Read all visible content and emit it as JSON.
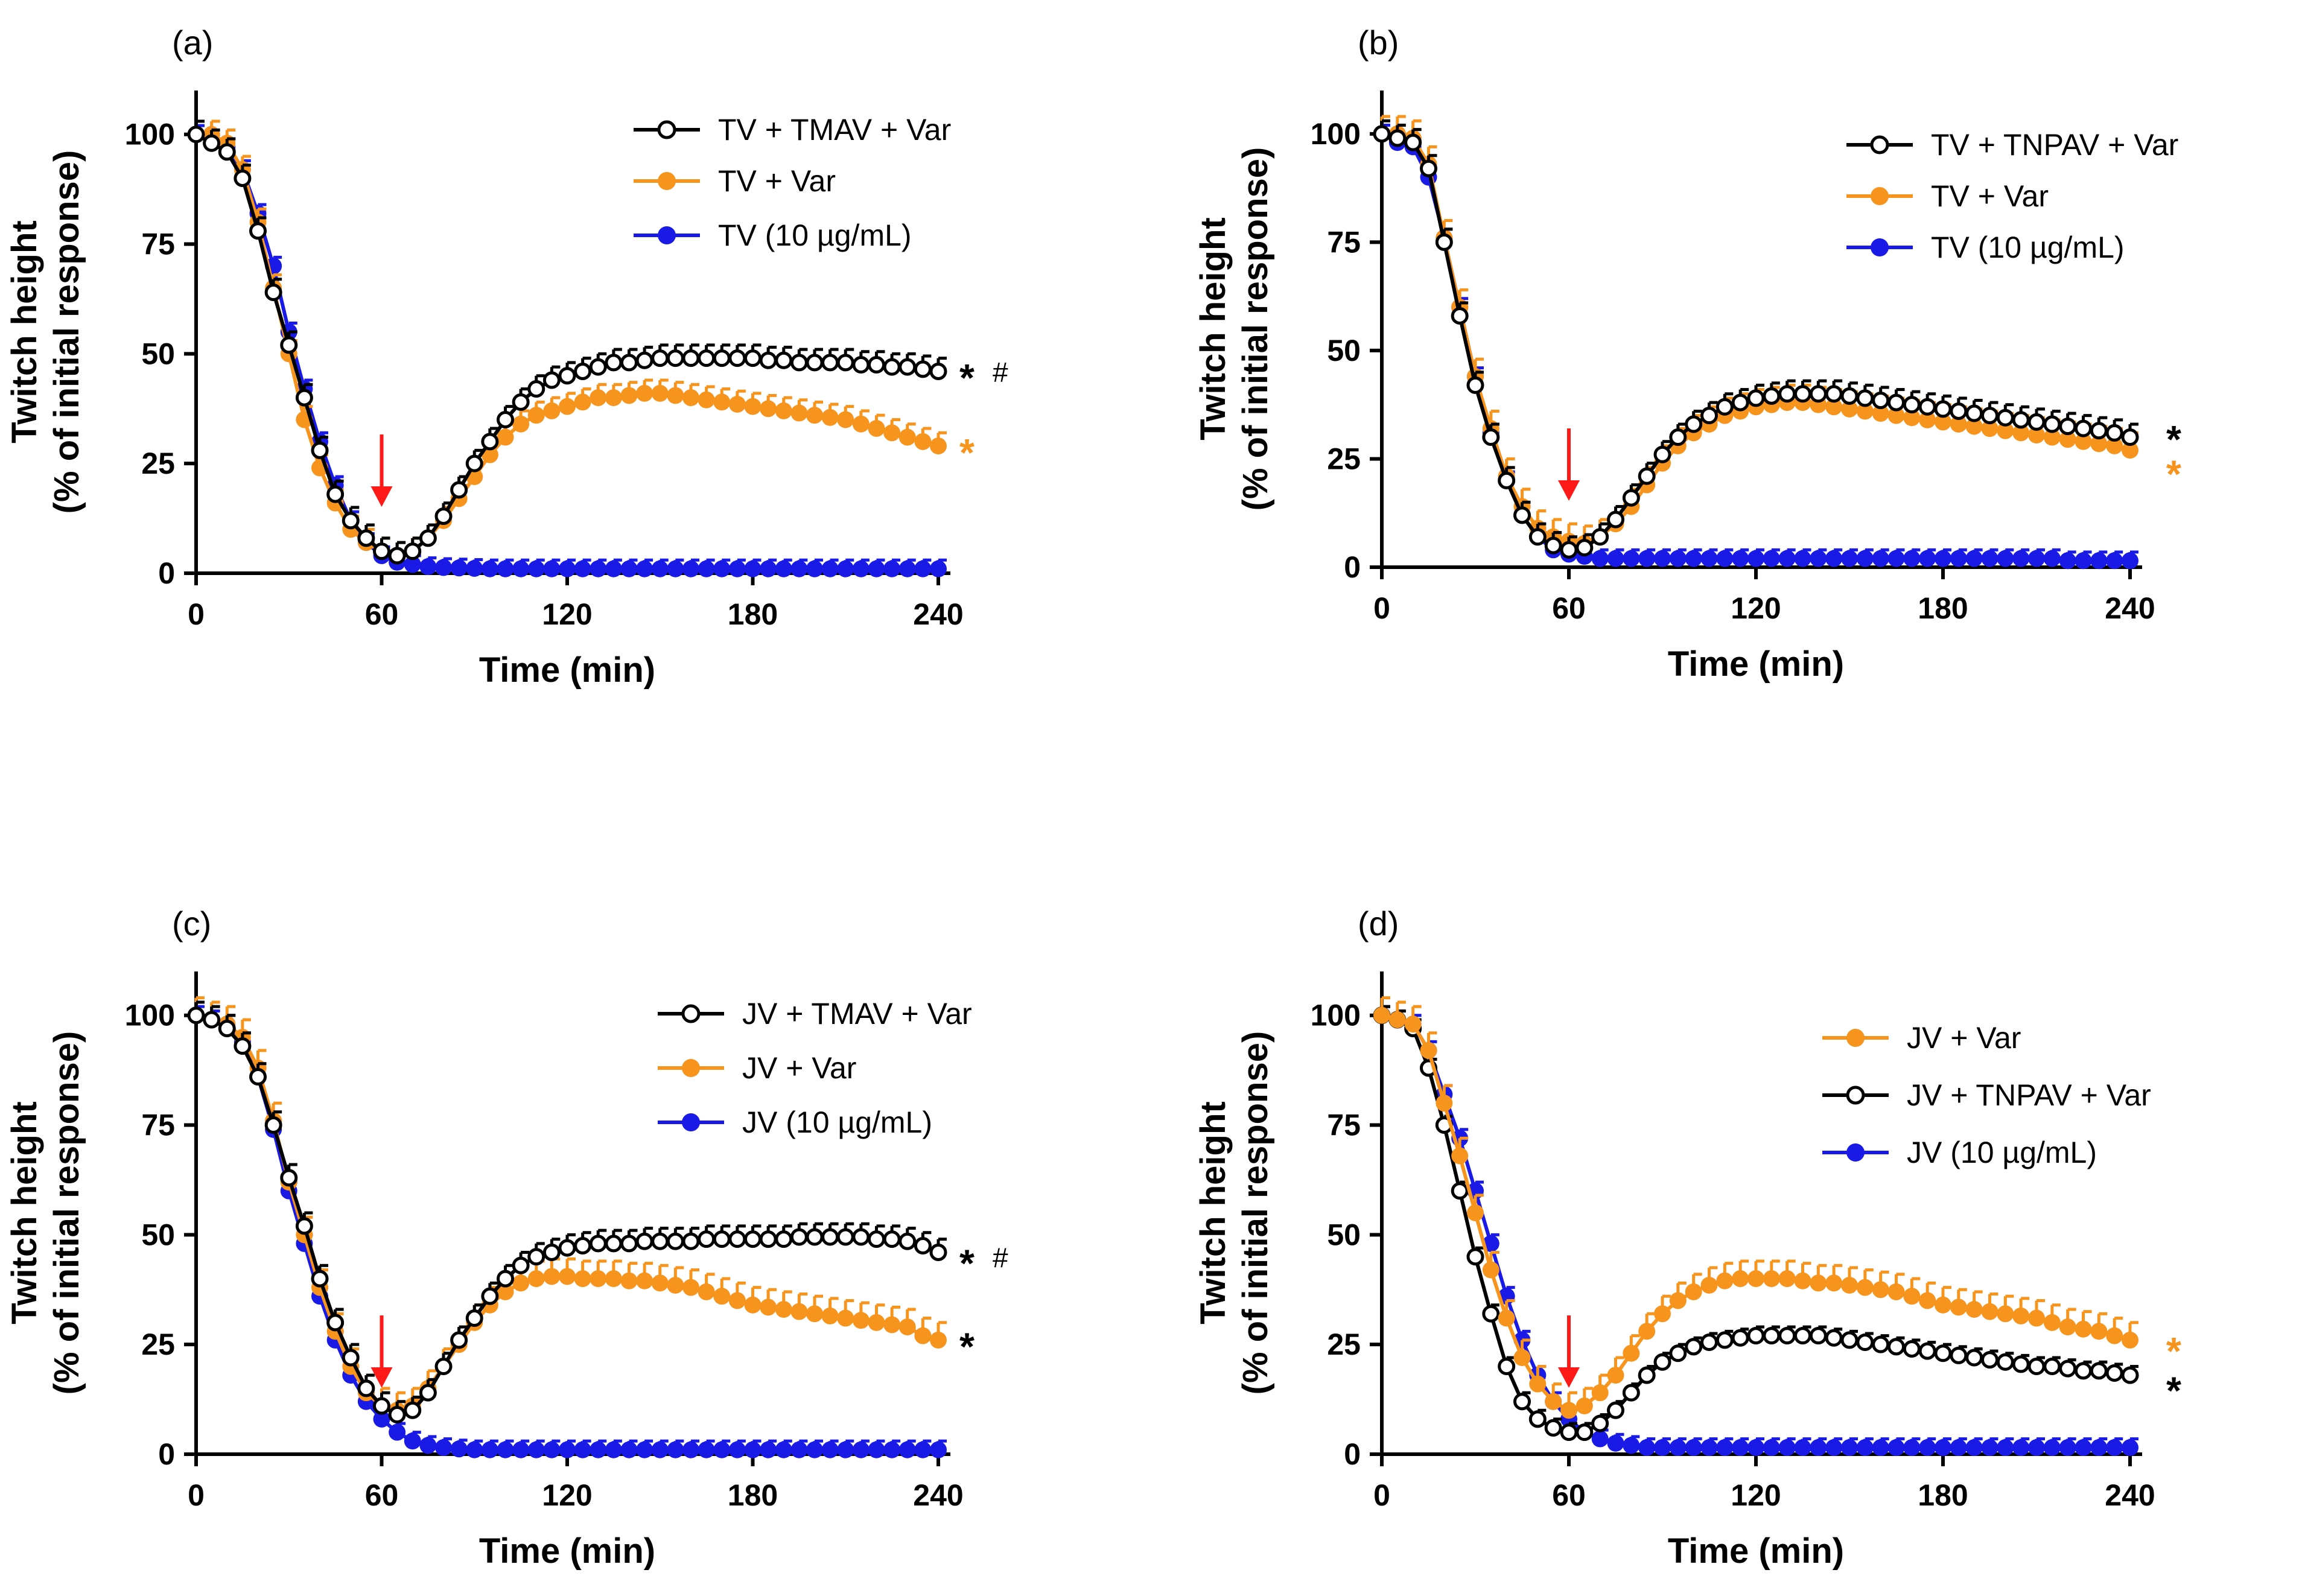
{
  "chart_data": [
    {
      "type": "line",
      "panel": "(a)",
      "xlabel": "Time (min)",
      "ylabel": [
        "Twitch height",
        "(% of initial response)"
      ],
      "xlim": [
        0,
        240
      ],
      "ylim": [
        0,
        110
      ],
      "xticks": [
        0,
        60,
        120,
        180,
        240
      ],
      "yticks": [
        0,
        25,
        50,
        75,
        100
      ],
      "arrow_time": 60,
      "legend": [
        "TV + TMAV + Var",
        "TV + Var",
        "TV (10 µg/mL)"
      ],
      "x": [
        0,
        5,
        10,
        15,
        20,
        25,
        30,
        35,
        40,
        45,
        50,
        55,
        60,
        65,
        70,
        75,
        80,
        85,
        90,
        95,
        100,
        105,
        110,
        115,
        120,
        125,
        130,
        135,
        140,
        145,
        150,
        155,
        160,
        165,
        170,
        175,
        180,
        185,
        190,
        195,
        200,
        205,
        210,
        215,
        220,
        225,
        230,
        235,
        240
      ],
      "series": [
        {
          "name": "TV + TMAV + Var",
          "style": "open",
          "color": "#000000",
          "err": 3,
          "values": [
            100,
            98,
            96,
            90,
            78,
            64,
            52,
            40,
            28,
            18,
            12,
            8,
            5,
            4,
            5,
            8,
            13,
            19,
            25,
            30,
            35,
            39,
            42,
            44,
            45,
            46,
            47,
            48,
            48,
            48.5,
            49,
            49,
            49,
            49,
            49,
            49,
            49,
            48.5,
            48.5,
            48,
            48,
            48,
            48,
            47.5,
            47.5,
            47,
            47,
            46.5,
            46
          ]
        },
        {
          "name": "TV + Var",
          "style": "filled",
          "color": "#F7941D",
          "err": 3,
          "values": [
            100,
            100,
            98,
            92,
            80,
            65,
            50,
            35,
            24,
            16,
            10,
            7,
            5,
            4,
            5,
            8,
            12,
            17,
            22,
            27,
            31,
            34,
            36,
            37,
            38,
            39,
            40,
            40,
            40.5,
            41,
            41,
            40.5,
            40,
            39.5,
            39,
            38.5,
            38,
            37.5,
            37,
            36.5,
            36,
            35.5,
            35,
            34,
            33,
            32,
            31,
            30,
            29
          ]
        },
        {
          "name": "TV (10 µg/mL)",
          "style": "filled",
          "color": "#1A1AE6",
          "err": 2,
          "values": [
            100,
            98,
            97,
            92,
            82,
            70,
            55,
            42,
            30,
            20,
            12,
            7,
            4,
            2.5,
            2,
            1.5,
            1.3,
            1.2,
            1.1,
            1,
            1,
            1,
            1,
            1,
            1,
            1,
            1,
            1,
            1,
            1,
            1,
            1,
            1,
            1,
            1,
            1,
            1,
            1,
            1,
            1,
            1,
            1,
            1,
            1,
            1,
            1,
            1,
            1,
            1
          ]
        }
      ],
      "sig": [
        {
          "text": "*",
          "y": 47,
          "color": "#000000"
        },
        {
          "text": "#",
          "y": 47,
          "color": "#000000",
          "hash": true
        },
        {
          "text": "*",
          "y": 30,
          "color": "#F7941D"
        }
      ]
    },
    {
      "type": "line",
      "panel": "(b)",
      "xlabel": "Time (min)",
      "ylabel": [
        "Twitch height",
        "(% of initial response)"
      ],
      "xlim": [
        0,
        240
      ],
      "ylim": [
        0,
        110
      ],
      "xticks": [
        0,
        60,
        120,
        180,
        240
      ],
      "yticks": [
        0,
        25,
        50,
        75,
        100
      ],
      "arrow_time": 60,
      "legend": [
        "TV + TNPAV + Var",
        "TV + Var",
        "TV (10 µg/mL)"
      ],
      "x": [
        0,
        5,
        10,
        15,
        20,
        25,
        30,
        35,
        40,
        45,
        50,
        55,
        60,
        65,
        70,
        75,
        80,
        85,
        90,
        95,
        100,
        105,
        110,
        115,
        120,
        125,
        130,
        135,
        140,
        145,
        150,
        155,
        160,
        165,
        170,
        175,
        180,
        185,
        190,
        195,
        200,
        205,
        210,
        215,
        220,
        225,
        230,
        235,
        240
      ],
      "series": [
        {
          "name": "TV + TNPAV + Var",
          "style": "open",
          "color": "#000000",
          "err": 3,
          "values": [
            100,
            99,
            98,
            92,
            75,
            58,
            42,
            30,
            20,
            12,
            7,
            5,
            4,
            4.5,
            7,
            11,
            16,
            21,
            26,
            30,
            33,
            35,
            37,
            38,
            39,
            39.5,
            40,
            40,
            40,
            40,
            39.5,
            39,
            38.5,
            38,
            37.5,
            37,
            36.5,
            36,
            35.5,
            35,
            34.5,
            34,
            33.5,
            33,
            32.5,
            32,
            31.5,
            31,
            30
          ]
        },
        {
          "name": "TV + Var",
          "style": "filled",
          "color": "#F7941D",
          "err": 4,
          "values": [
            100,
            100,
            99,
            93,
            76,
            60,
            44,
            32,
            21,
            14,
            9,
            7,
            6,
            5.5,
            7,
            10,
            14,
            19,
            24,
            28,
            31,
            33,
            35,
            36,
            37,
            37.5,
            38,
            38,
            37.5,
            37,
            36.5,
            36,
            35.5,
            35,
            34.5,
            34,
            33.5,
            33,
            32.5,
            32,
            31.5,
            31,
            30.5,
            30,
            29.5,
            29,
            28.5,
            28,
            27
          ]
        },
        {
          "name": "TV (10 µg/mL)",
          "style": "filled",
          "color": "#1A1AE6",
          "err": 2,
          "values": [
            100,
            98,
            97,
            90,
            76,
            60,
            44,
            31,
            20,
            12,
            7,
            4,
            3,
            2.5,
            2,
            2,
            2,
            2,
            2,
            2,
            2,
            2,
            2,
            2,
            2,
            2,
            2,
            2,
            2,
            2,
            2,
            2,
            2,
            2,
            2,
            2,
            2,
            2,
            2,
            2,
            2,
            2,
            2,
            2,
            1.5,
            1.5,
            1.5,
            1.5,
            1.5
          ]
        }
      ],
      "sig": [
        {
          "text": "*",
          "y": 32,
          "color": "#000000"
        },
        {
          "text": "*",
          "y": 24,
          "color": "#F7941D"
        }
      ]
    },
    {
      "type": "line",
      "panel": "(c)",
      "xlabel": "Time (min)",
      "ylabel": [
        "Twitch height",
        "(% of initial response)"
      ],
      "xlim": [
        0,
        240
      ],
      "ylim": [
        0,
        110
      ],
      "xticks": [
        0,
        60,
        120,
        180,
        240
      ],
      "yticks": [
        0,
        25,
        50,
        75,
        100
      ],
      "arrow_time": 60,
      "legend": [
        "JV + TMAV + Var",
        "JV + Var",
        "JV (10 µg/mL)"
      ],
      "x": [
        0,
        5,
        10,
        15,
        20,
        25,
        30,
        35,
        40,
        45,
        50,
        55,
        60,
        65,
        70,
        75,
        80,
        85,
        90,
        95,
        100,
        105,
        110,
        115,
        120,
        125,
        130,
        135,
        140,
        145,
        150,
        155,
        160,
        165,
        170,
        175,
        180,
        185,
        190,
        195,
        200,
        205,
        210,
        215,
        220,
        225,
        230,
        235,
        240
      ],
      "series": [
        {
          "name": "JV + TMAV + Var",
          "style": "open",
          "color": "#000000",
          "err": 3,
          "values": [
            100,
            99,
            97,
            93,
            86,
            75,
            63,
            52,
            40,
            30,
            22,
            15,
            11,
            9,
            10,
            14,
            20,
            26,
            31,
            36,
            40,
            43,
            45,
            46,
            47,
            47.5,
            48,
            48,
            48,
            48.5,
            48.5,
            48.5,
            48.5,
            49,
            49,
            49,
            49,
            49,
            49,
            49.5,
            49.5,
            49.5,
            49.5,
            49.5,
            49,
            49,
            48.5,
            47.5,
            46
          ]
        },
        {
          "name": "JV + Var",
          "style": "filled",
          "color": "#F7941D",
          "err": 4,
          "values": [
            100,
            99,
            98,
            95,
            88,
            76,
            62,
            50,
            38,
            28,
            20,
            14,
            11,
            10,
            11,
            15,
            20,
            25,
            30,
            34,
            37,
            39,
            40,
            40.5,
            40.5,
            40,
            40,
            40,
            39.5,
            39.5,
            39,
            38.5,
            38,
            37,
            36,
            35,
            34,
            33.5,
            33,
            32.5,
            32,
            31.5,
            31,
            30.5,
            30,
            29.5,
            29,
            27,
            26
          ]
        },
        {
          "name": "JV (10 µg/mL)",
          "style": "filled",
          "color": "#1A1AE6",
          "err": 2,
          "values": [
            100,
            99,
            98,
            94,
            86,
            74,
            60,
            48,
            36,
            26,
            18,
            12,
            8,
            5,
            3,
            2,
            1.5,
            1.2,
            1,
            1,
            1,
            1,
            1,
            1,
            1,
            1,
            1,
            1,
            1,
            1,
            1,
            1,
            1,
            1,
            1,
            1,
            1,
            1,
            1,
            1,
            1,
            1,
            1,
            1,
            1,
            1,
            1,
            1,
            1
          ]
        }
      ],
      "sig": [
        {
          "text": "*",
          "y": 46,
          "color": "#000000"
        },
        {
          "text": "#",
          "y": 46,
          "color": "#000000",
          "hash": true
        },
        {
          "text": "*",
          "y": 27,
          "color": "#000000"
        }
      ]
    },
    {
      "type": "line",
      "panel": "(d)",
      "xlabel": "Time (min)",
      "ylabel": [
        "Twitch height",
        "(% of initial response)"
      ],
      "xlim": [
        0,
        240
      ],
      "ylim": [
        0,
        110
      ],
      "xticks": [
        0,
        60,
        120,
        180,
        240
      ],
      "yticks": [
        0,
        25,
        50,
        75,
        100
      ],
      "arrow_time": 60,
      "legend": [
        "JV + Var",
        "JV + TNPAV + Var",
        "JV (10 µg/mL)"
      ],
      "x": [
        0,
        5,
        10,
        15,
        20,
        25,
        30,
        35,
        40,
        45,
        50,
        55,
        60,
        65,
        70,
        75,
        80,
        85,
        90,
        95,
        100,
        105,
        110,
        115,
        120,
        125,
        130,
        135,
        140,
        145,
        150,
        155,
        160,
        165,
        170,
        175,
        180,
        185,
        190,
        195,
        200,
        205,
        210,
        215,
        220,
        225,
        230,
        235,
        240
      ],
      "series": [
        {
          "name": "JV + Var",
          "style": "filled",
          "color": "#F7941D",
          "err": 4,
          "values": [
            100,
            99,
            98,
            92,
            80,
            68,
            55,
            42,
            31,
            22,
            16,
            12,
            10,
            11,
            14,
            18,
            23,
            28,
            32,
            35,
            37,
            38.5,
            39.5,
            40,
            40,
            40,
            40,
            39.5,
            39,
            39,
            38.5,
            38,
            37.5,
            37,
            36,
            35,
            34,
            33.5,
            33,
            32.5,
            32,
            31.5,
            31,
            30,
            29,
            28.5,
            28,
            27,
            26
          ]
        },
        {
          "name": "JV + TNPAV + Var",
          "style": "open",
          "color": "#000000",
          "err": 2,
          "values": [
            100,
            99,
            97,
            88,
            75,
            60,
            45,
            32,
            20,
            12,
            8,
            6,
            5,
            5,
            7,
            10,
            14,
            18,
            21,
            23,
            24.5,
            25.5,
            26,
            26.5,
            27,
            27,
            27,
            27,
            27,
            26.5,
            26,
            25.5,
            25,
            24.5,
            24,
            23.5,
            23,
            22.5,
            22,
            21.5,
            21,
            20.5,
            20,
            20,
            19.5,
            19,
            19,
            18.5,
            18
          ]
        },
        {
          "name": "JV (10 µg/mL)",
          "style": "filled",
          "color": "#1A1AE6",
          "err": 2,
          "values": [
            100,
            99,
            98,
            92,
            82,
            72,
            60,
            48,
            36,
            26,
            18,
            12,
            8,
            5,
            3.5,
            2.5,
            2,
            1.5,
            1.5,
            1.5,
            1.5,
            1.5,
            1.5,
            1.5,
            1.5,
            1.5,
            1.5,
            1.5,
            1.5,
            1.5,
            1.5,
            1.5,
            1.5,
            1.5,
            1.5,
            1.5,
            1.5,
            1.5,
            1.5,
            1.5,
            1.5,
            1.5,
            1.5,
            1.5,
            1.5,
            1.5,
            1.5,
            1.5,
            1.5
          ]
        }
      ],
      "sig": [
        {
          "text": "*",
          "y": 26,
          "color": "#F7941D"
        },
        {
          "text": "*",
          "y": 17,
          "color": "#000000"
        }
      ]
    }
  ]
}
